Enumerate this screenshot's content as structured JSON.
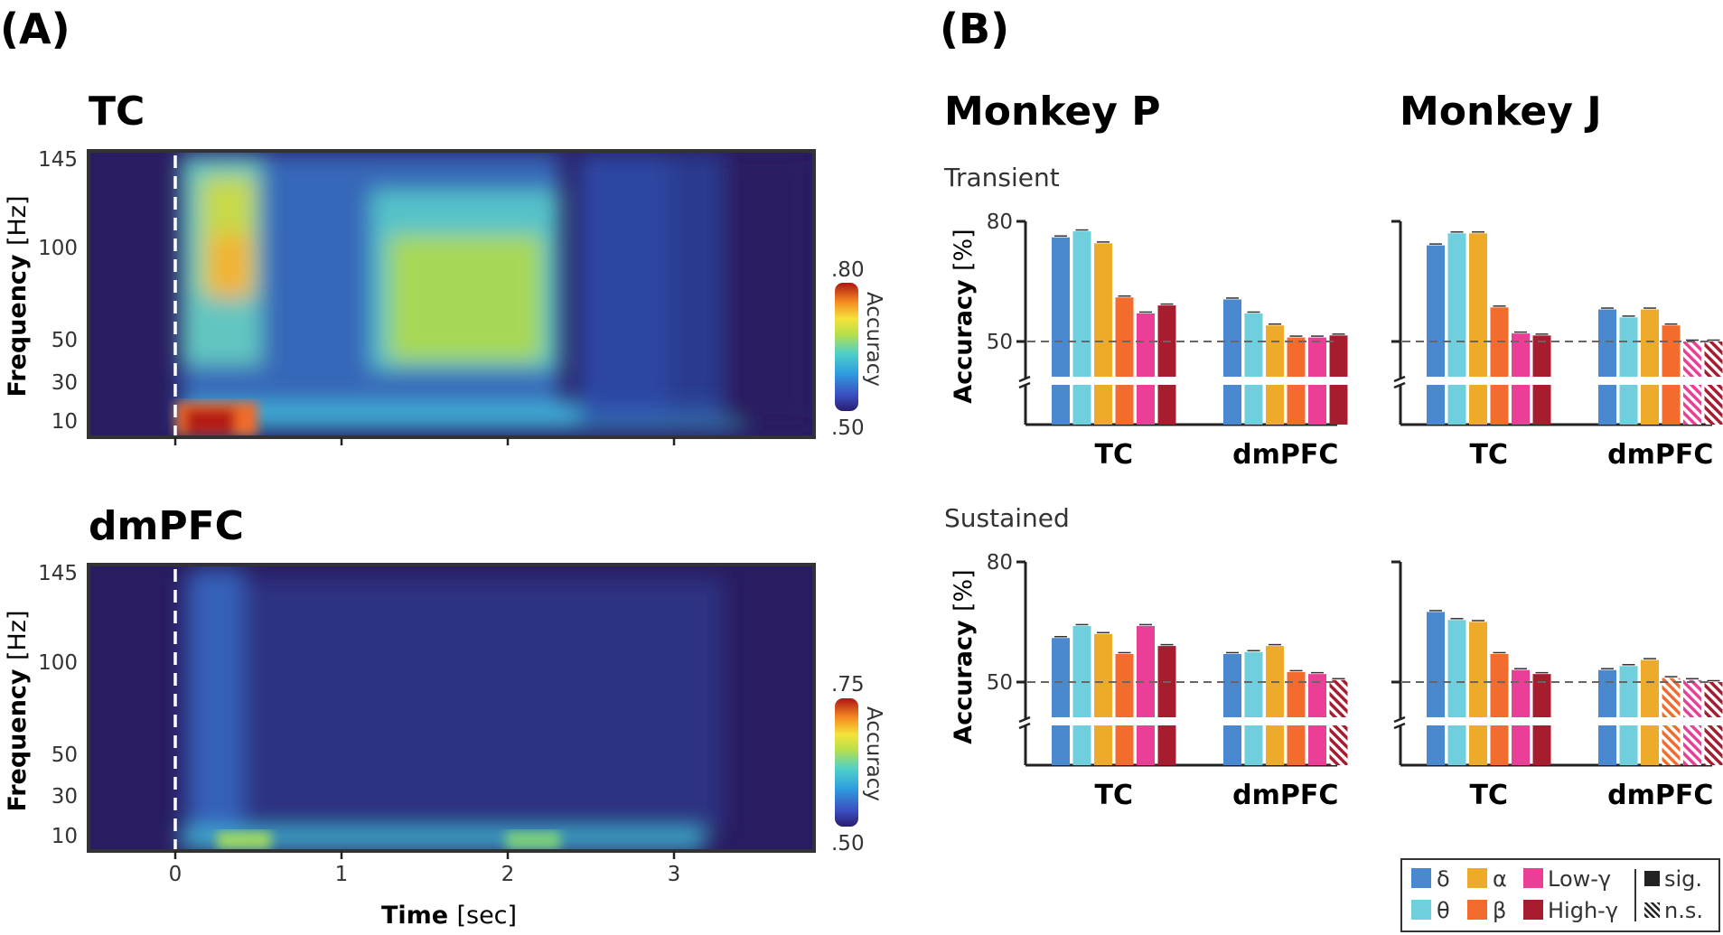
{
  "panel_a": {
    "letter": "(A)",
    "x_axis": {
      "label": "Time",
      "unit": "[sec]",
      "ticks": [
        "0",
        "1",
        "2",
        "3"
      ]
    },
    "y_axis": {
      "label": "Frequency",
      "unit": "[Hz]",
      "ticks": [
        "145",
        "100",
        "50",
        "30",
        "10"
      ]
    },
    "colorbar_label": "Accuracy"
  },
  "panel_b": {
    "letter": "(B)",
    "y_axis": {
      "label": "Accuracy",
      "unit": "[%]",
      "ticks": [
        "80",
        "50"
      ]
    }
  },
  "colors": {
    "delta": "#4a89cf",
    "theta": "#6fcfdc",
    "alpha": "#eeab2b",
    "beta": "#f36c2d",
    "low_gamma": "#ea3e97",
    "high_gamma": "#a71c2e",
    "chance_line": "#666666"
  },
  "legend": {
    "bands": [
      {
        "symbol": "δ",
        "key": "delta"
      },
      {
        "symbol": "α",
        "key": "alpha"
      },
      {
        "symbol": "Low-γ",
        "key": "low_gamma"
      },
      {
        "symbol": "θ",
        "key": "theta"
      },
      {
        "symbol": "β",
        "key": "beta"
      },
      {
        "symbol": "High-γ",
        "key": "high_gamma"
      }
    ],
    "sig": "sig.",
    "ns": "n.s."
  },
  "chart_data": [
    {
      "type": "heatmap",
      "title": "TC",
      "xlabel": "Time [sec]",
      "ylabel": "Frequency [Hz]",
      "xlim": [
        -0.5,
        3.85
      ],
      "x_ticks": [
        0,
        1,
        2,
        3
      ],
      "y_ticks": [
        145,
        100,
        50,
        30,
        10
      ],
      "colorbar": {
        "label": "Accuracy",
        "min": ".50",
        "max": ".80"
      },
      "stimulus_onset": 0,
      "description_regions": [
        {
          "time": [
            0.05,
            0.5
          ],
          "freq": [
            5,
            15
          ],
          "accuracy": 0.8
        },
        {
          "time": [
            0.2,
            0.5
          ],
          "freq": [
            50,
            145
          ],
          "accuracy": 0.68
        },
        {
          "time": [
            1.0,
            2.4
          ],
          "freq": [
            40,
            110
          ],
          "accuracy": 0.66
        },
        {
          "time": [
            2.5,
            3.8
          ],
          "freq": [
            5,
            145
          ],
          "accuracy": 0.52
        }
      ]
    },
    {
      "type": "heatmap",
      "title": "dmPFC",
      "xlabel": "Time [sec]",
      "ylabel": "Frequency [Hz]",
      "xlim": [
        -0.5,
        3.85
      ],
      "x_ticks": [
        0,
        1,
        2,
        3
      ],
      "y_ticks": [
        145,
        100,
        50,
        30,
        10
      ],
      "colorbar": {
        "label": "Accuracy",
        "min": ".50",
        "max": ".75"
      },
      "stimulus_onset": 0,
      "description_regions": [
        {
          "time": [
            0.1,
            3.0
          ],
          "freq": [
            5,
            12
          ],
          "accuracy": 0.62
        },
        {
          "time": [
            0.2,
            0.5
          ],
          "freq": [
            30,
            145
          ],
          "accuracy": 0.57
        }
      ]
    },
    {
      "type": "bar",
      "monkey": "Monkey P",
      "phase": "Transient",
      "ylabel": "Accuracy [%]",
      "ylim": [
        30,
        80
      ],
      "chance": 50,
      "categories": [
        "TC",
        "dmPFC"
      ],
      "series": [
        {
          "name": "δ",
          "values": [
            76,
            60.5
          ],
          "significant": [
            true,
            true
          ]
        },
        {
          "name": "θ",
          "values": [
            77.5,
            57
          ],
          "significant": [
            true,
            true
          ]
        },
        {
          "name": "α",
          "values": [
            74.5,
            54
          ],
          "significant": [
            true,
            true
          ]
        },
        {
          "name": "β",
          "values": [
            61,
            51
          ],
          "significant": [
            true,
            true
          ]
        },
        {
          "name": "Low-γ",
          "values": [
            57,
            51
          ],
          "significant": [
            true,
            true
          ]
        },
        {
          "name": "High-γ",
          "values": [
            59,
            51.5
          ],
          "significant": [
            true,
            true
          ]
        }
      ]
    },
    {
      "type": "bar",
      "monkey": "Monkey J",
      "phase": "Transient",
      "ylabel": "Accuracy [%]",
      "ylim": [
        30,
        80
      ],
      "chance": 50,
      "categories": [
        "TC",
        "dmPFC"
      ],
      "series": [
        {
          "name": "δ",
          "values": [
            74,
            58
          ],
          "significant": [
            true,
            true
          ]
        },
        {
          "name": "θ",
          "values": [
            77,
            56
          ],
          "significant": [
            true,
            true
          ]
        },
        {
          "name": "α",
          "values": [
            77,
            58
          ],
          "significant": [
            true,
            true
          ]
        },
        {
          "name": "β",
          "values": [
            58.5,
            54
          ],
          "significant": [
            true,
            true
          ]
        },
        {
          "name": "Low-γ",
          "values": [
            52,
            50
          ],
          "significant": [
            true,
            false
          ]
        },
        {
          "name": "High-γ",
          "values": [
            51.5,
            50
          ],
          "significant": [
            true,
            false
          ]
        }
      ]
    },
    {
      "type": "bar",
      "monkey": "Monkey P",
      "phase": "Sustained",
      "ylabel": "Accuracy [%]",
      "ylim": [
        30,
        80
      ],
      "chance": 50,
      "categories": [
        "TC",
        "dmPFC"
      ],
      "series": [
        {
          "name": "δ",
          "values": [
            61,
            57
          ],
          "significant": [
            true,
            true
          ]
        },
        {
          "name": "θ",
          "values": [
            64,
            57.5
          ],
          "significant": [
            true,
            true
          ]
        },
        {
          "name": "α",
          "values": [
            62,
            59
          ],
          "significant": [
            true,
            true
          ]
        },
        {
          "name": "β",
          "values": [
            57,
            52.5
          ],
          "significant": [
            true,
            true
          ]
        },
        {
          "name": "Low-γ",
          "values": [
            64,
            52
          ],
          "significant": [
            true,
            true
          ]
        },
        {
          "name": "High-γ",
          "values": [
            59,
            50.5
          ],
          "significant": [
            true,
            false
          ]
        }
      ]
    },
    {
      "type": "bar",
      "monkey": "Monkey J",
      "phase": "Sustained",
      "ylabel": "Accuracy [%]",
      "ylim": [
        30,
        80
      ],
      "chance": 50,
      "categories": [
        "TC",
        "dmPFC"
      ],
      "series": [
        {
          "name": "δ",
          "values": [
            67.5,
            53
          ],
          "significant": [
            true,
            true
          ]
        },
        {
          "name": "θ",
          "values": [
            65.5,
            54
          ],
          "significant": [
            true,
            true
          ]
        },
        {
          "name": "α",
          "values": [
            65,
            55.5
          ],
          "significant": [
            true,
            true
          ]
        },
        {
          "name": "β",
          "values": [
            57,
            51
          ],
          "significant": [
            true,
            false
          ]
        },
        {
          "name": "Low-γ",
          "values": [
            53,
            50.5
          ],
          "significant": [
            true,
            false
          ]
        },
        {
          "name": "High-γ",
          "values": [
            52,
            50
          ],
          "significant": [
            true,
            false
          ]
        }
      ]
    }
  ]
}
